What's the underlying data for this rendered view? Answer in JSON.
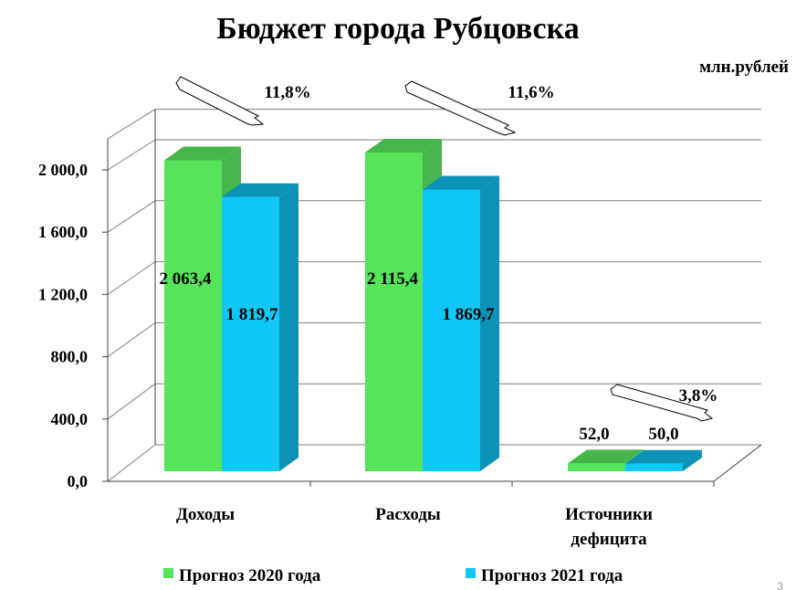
{
  "page_number": "3",
  "chart_data": {
    "type": "bar",
    "title": "Бюджет города Рубцовска",
    "unit_label": "млн.рублей",
    "categories": [
      "Доходы",
      "Расходы",
      "Источники дефицита"
    ],
    "series": [
      {
        "name": "Прогноз 2020 года",
        "values": [
          2063.4,
          2115.4,
          52.0
        ],
        "labels": [
          "2 063,4",
          "2 115,4",
          "52,0"
        ],
        "color": "#55e45a",
        "side_color": "#46b54c"
      },
      {
        "name": "Прогноз 2021 года",
        "values": [
          1819.7,
          1869.7,
          50.0
        ],
        "labels": [
          "1 819,7",
          "1 869,7",
          "50,0"
        ],
        "color": "#10c8f7",
        "side_color": "#0b92b6"
      }
    ],
    "yticks": [
      "0,0",
      "400,0",
      "800,0",
      "1 200,0",
      "1 600,0",
      "2 000,0"
    ],
    "ytick_values": [
      0,
      400,
      800,
      1200,
      1600,
      2000
    ],
    "ylim": [
      0,
      2200
    ],
    "grid": true,
    "legend_position": "bottom",
    "changes": [
      "11,8%",
      "11,6%",
      "3,8%"
    ]
  }
}
